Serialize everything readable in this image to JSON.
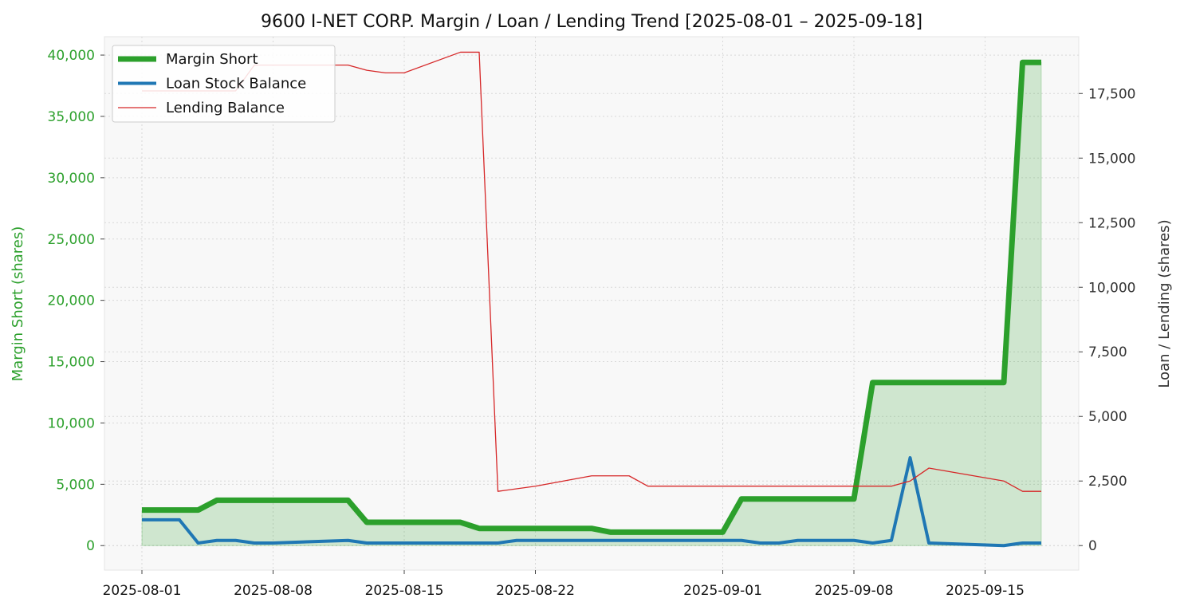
{
  "chart_data": {
    "type": "line",
    "title": "9600 I-NET CORP. Margin / Loan / Lending Trend [2025-08-01 – 2025-09-18]",
    "ylabel_left": "Margin Short (shares)",
    "ylabel_right": "Loan / Lending (shares)",
    "xlabel": "",
    "x_range": [
      "2025-07-30",
      "2025-09-20"
    ],
    "ylim_left": [
      -2000,
      41500
    ],
    "ylim_right": [
      -950,
      19700
    ],
    "x_ticks": [
      "2025-08-01",
      "2025-08-08",
      "2025-08-15",
      "2025-08-22",
      "2025-09-01",
      "2025-09-08",
      "2025-09-15"
    ],
    "y_ticks_left": [
      0,
      5000,
      10000,
      15000,
      20000,
      25000,
      30000,
      35000,
      40000
    ],
    "y_ticks_right": [
      0,
      2500,
      5000,
      7500,
      10000,
      12500,
      15000,
      17500
    ],
    "y_tick_labels_left": [
      "0",
      "5,000",
      "10,000",
      "15,000",
      "20,000",
      "25,000",
      "30,000",
      "35,000",
      "40,000"
    ],
    "y_tick_labels_right": [
      "0",
      "2,500",
      "5,000",
      "7,500",
      "10,000",
      "12,500",
      "15,000",
      "17,500"
    ],
    "grid": true,
    "legend_position": "top-left",
    "series": [
      {
        "name": "Margin Short",
        "axis": "left",
        "color": "#2ca02c",
        "fill": true,
        "points": [
          [
            "2025-08-01",
            2900
          ],
          [
            "2025-08-04",
            2900
          ],
          [
            "2025-08-05",
            3700
          ],
          [
            "2025-08-08",
            3700
          ],
          [
            "2025-08-12",
            3700
          ],
          [
            "2025-08-13",
            1900
          ],
          [
            "2025-08-18",
            1900
          ],
          [
            "2025-08-19",
            1400
          ],
          [
            "2025-08-25",
            1400
          ],
          [
            "2025-08-26",
            1100
          ],
          [
            "2025-08-29",
            1100
          ],
          [
            "2025-09-01",
            1100
          ],
          [
            "2025-09-02",
            3800
          ],
          [
            "2025-09-08",
            3800
          ],
          [
            "2025-09-09",
            13300
          ],
          [
            "2025-09-16",
            13300
          ],
          [
            "2025-09-17",
            39400
          ],
          [
            "2025-09-18",
            39400
          ]
        ]
      },
      {
        "name": "Loan Stock Balance",
        "axis": "right",
        "color": "#1f77b4",
        "fill": false,
        "points": [
          [
            "2025-08-01",
            1000
          ],
          [
            "2025-08-03",
            1000
          ],
          [
            "2025-08-04",
            100
          ],
          [
            "2025-08-05",
            200
          ],
          [
            "2025-08-06",
            200
          ],
          [
            "2025-08-07",
            100
          ],
          [
            "2025-08-08",
            100
          ],
          [
            "2025-08-12",
            200
          ],
          [
            "2025-08-13",
            100
          ],
          [
            "2025-08-20",
            100
          ],
          [
            "2025-08-21",
            200
          ],
          [
            "2025-08-29",
            200
          ],
          [
            "2025-09-02",
            200
          ],
          [
            "2025-09-03",
            100
          ],
          [
            "2025-09-04",
            100
          ],
          [
            "2025-09-05",
            200
          ],
          [
            "2025-09-08",
            200
          ],
          [
            "2025-09-09",
            100
          ],
          [
            "2025-09-10",
            200
          ],
          [
            "2025-09-11",
            3400
          ],
          [
            "2025-09-12",
            100
          ],
          [
            "2025-09-16",
            0
          ],
          [
            "2025-09-17",
            100
          ],
          [
            "2025-09-18",
            100
          ]
        ]
      },
      {
        "name": "Lending Balance",
        "axis": "right",
        "color": "#d62728",
        "fill": false,
        "points": [
          [
            "2025-08-01",
            17600
          ],
          [
            "2025-08-06",
            17600
          ],
          [
            "2025-08-07",
            18600
          ],
          [
            "2025-08-12",
            18600
          ],
          [
            "2025-08-13",
            18400
          ],
          [
            "2025-08-14",
            18300
          ],
          [
            "2025-08-15",
            18300
          ],
          [
            "2025-08-18",
            19100
          ],
          [
            "2025-08-19",
            19100
          ],
          [
            "2025-08-20",
            2100
          ],
          [
            "2025-08-22",
            2300
          ],
          [
            "2025-08-25",
            2700
          ],
          [
            "2025-08-27",
            2700
          ],
          [
            "2025-08-28",
            2300
          ],
          [
            "2025-09-08",
            2300
          ],
          [
            "2025-09-10",
            2300
          ],
          [
            "2025-09-11",
            2500
          ],
          [
            "2025-09-12",
            3000
          ],
          [
            "2025-09-16",
            2500
          ],
          [
            "2025-09-17",
            2100
          ],
          [
            "2025-09-18",
            2100
          ]
        ]
      }
    ]
  }
}
